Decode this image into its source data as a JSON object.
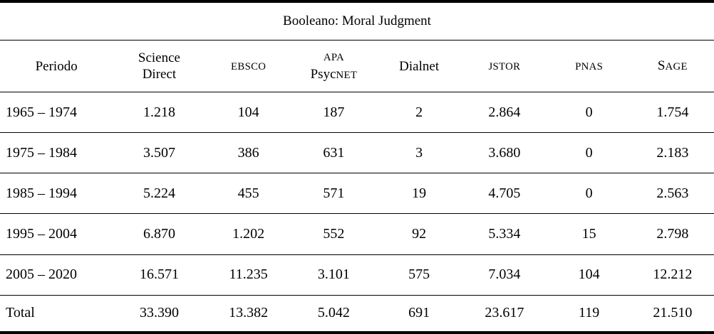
{
  "table": {
    "title": "Booleano: Moral Judgment",
    "columns": [
      {
        "name": "periodo",
        "lines": [
          [
            {
              "t": "Periodo"
            }
          ]
        ]
      },
      {
        "name": "science-direct",
        "lines": [
          [
            {
              "t": "Science"
            }
          ],
          [
            {
              "t": "Direct"
            }
          ]
        ]
      },
      {
        "name": "ebsco",
        "lines": [
          [
            {
              "t": "EBSCO",
              "small": true
            }
          ]
        ]
      },
      {
        "name": "apa-psycnet",
        "lines": [
          [
            {
              "t": "APA",
              "small": true
            }
          ],
          [
            {
              "t": "Psyc"
            },
            {
              "t": "NET",
              "small": true
            }
          ]
        ]
      },
      {
        "name": "dialnet",
        "lines": [
          [
            {
              "t": "Dialnet"
            }
          ]
        ]
      },
      {
        "name": "jstor",
        "lines": [
          [
            {
              "t": "JSTOR",
              "small": true
            }
          ]
        ]
      },
      {
        "name": "pnas",
        "lines": [
          [
            {
              "t": "PNAS",
              "small": true
            }
          ]
        ]
      },
      {
        "name": "sage",
        "lines": [
          [
            {
              "t": "S"
            },
            {
              "t": "AGE",
              "small": true
            }
          ]
        ]
      }
    ],
    "rows": [
      {
        "label": "1965 – 1974",
        "values": [
          "1.218",
          "104",
          "187",
          "2",
          "2.864",
          "0",
          "1.754"
        ]
      },
      {
        "label": "1975 – 1984",
        "values": [
          "3.507",
          "386",
          "631",
          "3",
          "3.680",
          "0",
          "2.183"
        ]
      },
      {
        "label": "1985 – 1994",
        "values": [
          "5.224",
          "455",
          "571",
          "19",
          "4.705",
          "0",
          "2.563"
        ]
      },
      {
        "label": "1995 – 2004",
        "values": [
          "6.870",
          "1.202",
          "552",
          "92",
          "5.334",
          "15",
          "2.798"
        ]
      },
      {
        "label": "2005 – 2020",
        "values": [
          "16.571",
          "11.235",
          "3.101",
          "575",
          "7.034",
          "104",
          "12.212"
        ]
      },
      {
        "label": "Total",
        "values": [
          "33.390",
          "13.382",
          "5.042",
          "691",
          "23.617",
          "119",
          "21.510"
        ]
      }
    ]
  },
  "colors": {
    "text": "#000000",
    "background": "#ffffff",
    "rule": "#000000"
  }
}
